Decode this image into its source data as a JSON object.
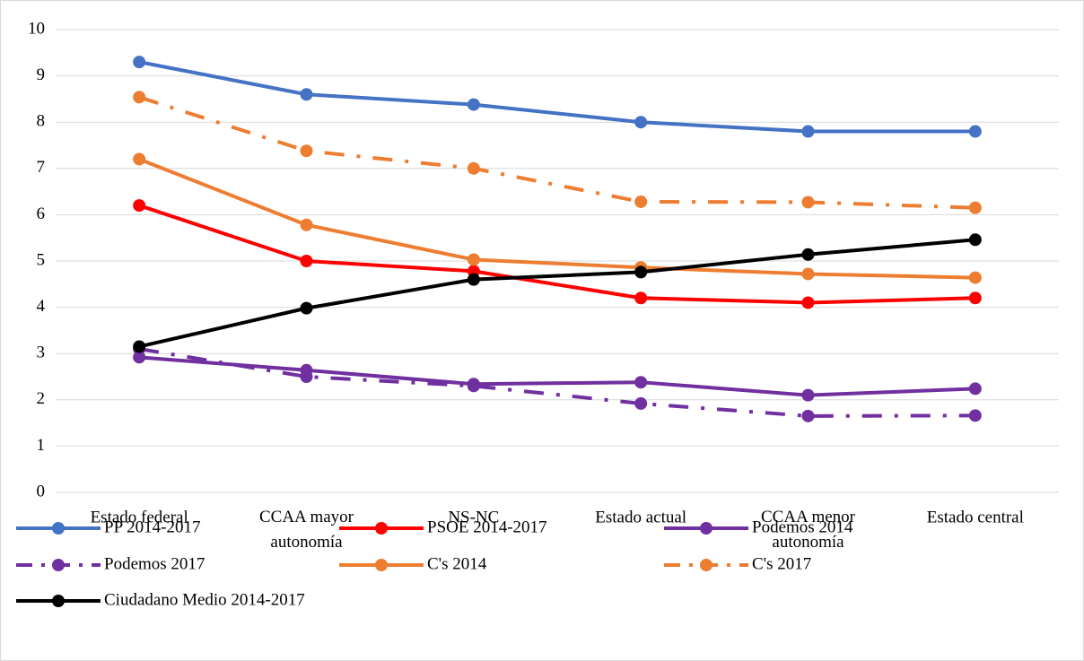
{
  "chart_data": {
    "type": "line",
    "categories": [
      "Estado federal",
      "CCAA mayor autonomía",
      "NS-NC",
      "Estado actual",
      "CCAA menor autonomía",
      "Estado central"
    ],
    "ylim": [
      0,
      10
    ],
    "yticks": [
      0,
      1,
      2,
      3,
      4,
      5,
      6,
      7,
      8,
      9,
      10
    ],
    "grid": true,
    "series": [
      {
        "name": "PP 2014-2017",
        "color": "#4472c4",
        "line_style": "solid",
        "values": [
          9.3,
          8.6,
          8.38,
          8.0,
          7.8,
          7.8
        ]
      },
      {
        "name": "PSOE 2014-2017",
        "color": "#ff0000",
        "line_style": "solid",
        "values": [
          6.2,
          5.0,
          4.78,
          4.2,
          4.1,
          4.2
        ]
      },
      {
        "name": "Podemos 2014",
        "color": "#7030a0",
        "line_style": "solid",
        "values": [
          2.92,
          2.64,
          2.34,
          2.38,
          2.1,
          2.24
        ]
      },
      {
        "name": "Podemos 2017",
        "color": "#7030a0",
        "line_style": "dash-dot",
        "values": [
          3.1,
          2.5,
          2.3,
          1.92,
          1.65,
          1.66
        ]
      },
      {
        "name": "C's 2014",
        "color": "#ed7d31",
        "line_style": "solid",
        "values": [
          7.2,
          5.78,
          5.03,
          4.86,
          4.72,
          4.64
        ]
      },
      {
        "name": "C's 2017",
        "color": "#ed7d31",
        "line_style": "dash-dot",
        "values": [
          8.54,
          7.38,
          7.0,
          6.28,
          6.27,
          6.15
        ]
      },
      {
        "name": "Ciudadano Medio 2014-2017",
        "color": "#000000",
        "line_style": "solid",
        "values": [
          3.15,
          3.98,
          4.6,
          4.76,
          5.14,
          5.46
        ]
      }
    ]
  }
}
